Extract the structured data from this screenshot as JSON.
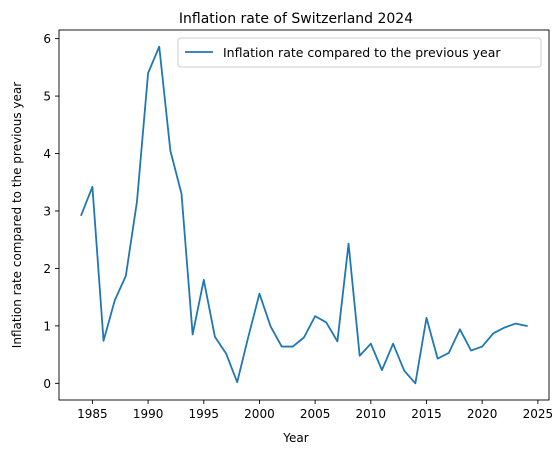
{
  "chart_data": {
    "type": "line",
    "title": "Inflation rate of Switzerland 2024",
    "xlabel": "Year",
    "ylabel": "Inflation rate compared to the previous year",
    "xlim": [
      1982.0,
      2026.0
    ],
    "ylim": [
      -0.29,
      6.15
    ],
    "xticks": [
      1985,
      1990,
      1995,
      2000,
      2005,
      2010,
      2015,
      2020,
      2025
    ],
    "yticks": [
      0,
      1,
      2,
      3,
      4,
      5,
      6
    ],
    "grid": false,
    "legend_position": "top-right",
    "series": [
      {
        "name": "Inflation rate compared to the previous year",
        "color": "#1f77b4",
        "x": [
          1984,
          1985,
          1986,
          1987,
          1988,
          1989,
          1990,
          1991,
          1992,
          1993,
          1994,
          1995,
          1996,
          1997,
          1998,
          1999,
          2000,
          2001,
          2002,
          2003,
          2004,
          2005,
          2006,
          2007,
          2008,
          2009,
          2010,
          2011,
          2012,
          2013,
          2014,
          2015,
          2016,
          2017,
          2018,
          2019,
          2020,
          2021,
          2022,
          2023,
          2024
        ],
        "values": [
          2.93,
          3.42,
          0.74,
          1.44,
          1.87,
          3.16,
          5.4,
          5.86,
          4.05,
          3.3,
          0.85,
          1.8,
          0.81,
          0.52,
          0.02,
          0.81,
          1.56,
          0.99,
          0.64,
          0.64,
          0.8,
          1.17,
          1.06,
          0.73,
          2.43,
          0.48,
          0.69,
          0.23,
          0.69,
          0.22,
          0.0,
          1.14,
          0.43,
          0.53,
          0.94,
          0.57,
          0.64,
          0.87,
          0.97,
          1.04,
          1.0
        ]
      }
    ]
  }
}
